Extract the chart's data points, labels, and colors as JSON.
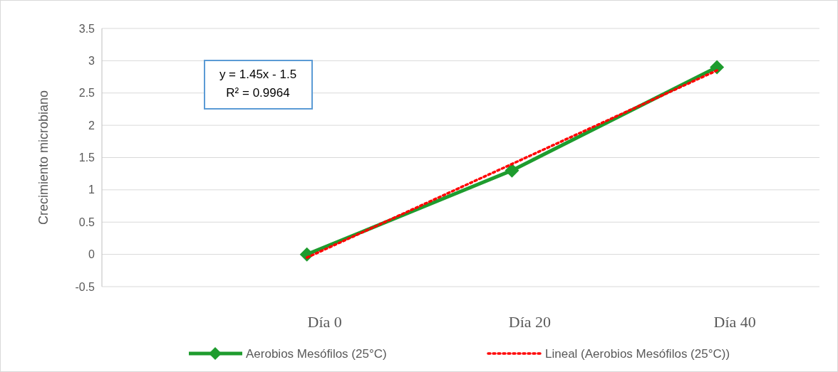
{
  "chart_data": {
    "type": "line",
    "ylabel": "Crecimiento microbiano",
    "categories": [
      "Día 0",
      "Día 20",
      "Día 40"
    ],
    "series": [
      {
        "name": "Aerobios Mesófilos (25°C)",
        "color": "#1e9c2e",
        "values": [
          0,
          1.3,
          2.9
        ],
        "marker": "diamond",
        "line_style": "solid"
      },
      {
        "name": "Lineal (Aerobios Mesófilos (25°C))",
        "color": "#ff0000",
        "values": [
          -0.05,
          1.4,
          2.85
        ],
        "marker": "none",
        "line_style": "dotted"
      }
    ],
    "ylim": [
      -0.5,
      3.5
    ],
    "yticks": [
      -0.5,
      0,
      0.5,
      1,
      1.5,
      2,
      2.5,
      3,
      3.5
    ],
    "grid": "y",
    "legend": "bottom",
    "annotations": [
      "y = 1.45x - 1.5",
      "R² = 0.9964"
    ]
  }
}
